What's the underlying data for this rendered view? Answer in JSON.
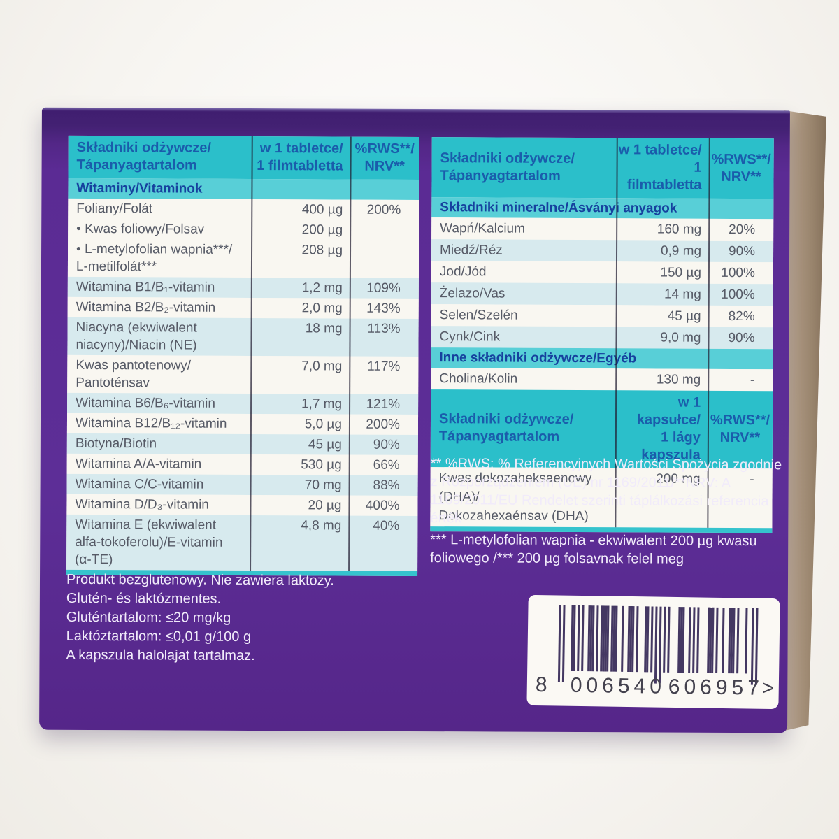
{
  "colors": {
    "box_purple": "#5b2b94",
    "box_purple_dark": "#401e70",
    "table_header_teal": "#2bbfca",
    "section_band_teal": "#58cfd7",
    "row_shade_blue": "#d7eaee",
    "row_plain": "#f9f7f1",
    "header_text_navy": "#1a5cab",
    "section_text_navy": "#16419e",
    "row_text_gray": "#565a66",
    "cardboard_edge_tan": "#a8937b",
    "barcode_bar": "#443862"
  },
  "left_table": {
    "blocks": [
      {
        "type": "header",
        "cols": [
          [
            "Składniki odżywcze/",
            "Tápanyagtartalom"
          ],
          [
            "w 1 tabletce/",
            "1 filmtabletta"
          ],
          [
            "%RWS**/",
            "NRV**"
          ]
        ]
      },
      {
        "type": "section",
        "label": "Witaminy/Vitaminok"
      },
      {
        "type": "row",
        "name": [
          "Foliany/Folát"
        ],
        "amount": "400 µg",
        "nrv": "200%",
        "shaded": false
      },
      {
        "type": "row",
        "name": [
          "• Kwas foliowy/Folsav"
        ],
        "amount": "200 µg",
        "nrv": "",
        "shaded": false
      },
      {
        "type": "row",
        "name": [
          "• L-metylofolian wapnia***/",
          "L-metilfolát***"
        ],
        "amount": "208 µg",
        "nrv": "",
        "shaded": false
      },
      {
        "type": "row",
        "name": [
          "Witamina B1/B₁-vitamin"
        ],
        "amount": "1,2 mg",
        "nrv": "109%",
        "shaded": true
      },
      {
        "type": "row",
        "name": [
          "Witamina B2/B₂-vitamin"
        ],
        "amount": "2,0 mg",
        "nrv": "143%",
        "shaded": false
      },
      {
        "type": "row",
        "name": [
          "Niacyna (ekwiwalent",
          "niacyny)/Niacin (NE)"
        ],
        "amount": "18 mg",
        "nrv": "113%",
        "shaded": true
      },
      {
        "type": "row",
        "name": [
          "Kwas pantotenowy/",
          "Pantoténsav"
        ],
        "amount": "7,0 mg",
        "nrv": "117%",
        "shaded": false
      },
      {
        "type": "row",
        "name": [
          "Witamina B6/B₆-vitamin"
        ],
        "amount": "1,7 mg",
        "nrv": "121%",
        "shaded": true
      },
      {
        "type": "row",
        "name": [
          "Witamina B12/B₁₂-vitamin"
        ],
        "amount": "5,0 µg",
        "nrv": "200%",
        "shaded": false
      },
      {
        "type": "row",
        "name": [
          "Biotyna/Biotin"
        ],
        "amount": "45 µg",
        "nrv": "90%",
        "shaded": true
      },
      {
        "type": "row",
        "name": [
          "Witamina A/A-vitamin"
        ],
        "amount": "530 µg",
        "nrv": "66%",
        "shaded": false
      },
      {
        "type": "row",
        "name": [
          "Witamina C/C-vitamin"
        ],
        "amount": "70 mg",
        "nrv": "88%",
        "shaded": true
      },
      {
        "type": "row",
        "name": [
          "Witamina D/D₃-vitamin"
        ],
        "amount": "20 µg",
        "nrv": "400%",
        "shaded": false
      },
      {
        "type": "row",
        "name": [
          "Witamina E (ekwiwalent",
          "alfa-tokoferolu)/E-vitamin",
          "(α-TE)"
        ],
        "amount": "4,8 mg",
        "nrv": "40%",
        "shaded": true
      }
    ]
  },
  "right_table": {
    "blocks": [
      {
        "type": "header",
        "cols": [
          [
            "Składniki odżywcze/",
            "Tápanyagtartalom"
          ],
          [
            "w 1 tabletce/",
            "1 filmtabletta"
          ],
          [
            "%RWS**/",
            "NRV**"
          ]
        ]
      },
      {
        "type": "section",
        "label": "Składniki mineralne/Ásványi anyagok"
      },
      {
        "type": "row",
        "name": [
          "Wapń/Kalcium"
        ],
        "amount": "160 mg",
        "nrv": "20%",
        "shaded": false
      },
      {
        "type": "row",
        "name": [
          "Miedź/Réz"
        ],
        "amount": "0,9 mg",
        "nrv": "90%",
        "shaded": true
      },
      {
        "type": "row",
        "name": [
          "Jod/Jód"
        ],
        "amount": "150 µg",
        "nrv": "100%",
        "shaded": false
      },
      {
        "type": "row",
        "name": [
          "Żelazo/Vas"
        ],
        "amount": "14 mg",
        "nrv": "100%",
        "shaded": true
      },
      {
        "type": "row",
        "name": [
          "Selen/Szelén"
        ],
        "amount": "45 µg",
        "nrv": "82%",
        "shaded": false
      },
      {
        "type": "row",
        "name": [
          "Cynk/Cink"
        ],
        "amount": "9,0 mg",
        "nrv": "90%",
        "shaded": true
      },
      {
        "type": "section",
        "label": "Inne składniki odżywcze/Egyéb"
      },
      {
        "type": "row",
        "name": [
          "Cholina/Kolin"
        ],
        "amount": "130 mg",
        "nrv": "-",
        "shaded": false
      },
      {
        "type": "header",
        "cols": [
          [
            "Składniki odżywcze/",
            "Tápanyagtartalom"
          ],
          [
            "w 1 kapsułce/",
            "1 lágy kapszula"
          ],
          [
            "%RWS**/",
            "NRV**"
          ]
        ]
      },
      {
        "type": "row",
        "name": [
          "Kwas dokozaheksaenowy (DHA)/",
          "Dokozahexaénsav (DHA)"
        ],
        "amount": "200 mg",
        "nrv": "-",
        "shaded": false
      }
    ]
  },
  "footnotes_right": [
    "** %RWS:  % Referencyjnych Wartości Spożycia zgodnie z Rozporządzeniem (UE) nr 1169/2011/**NRV: A 1169/2011/EU Rendelet szerinti táplálkozási referencia érték",
    "*** L-metylofolian wapnia - ekwiwalent 200 µg kwasu foliowego /*** 200 µg folsavnak felel meg"
  ],
  "footnotes_left": [
    "Produkt bezglutenowy. Nie zawiera laktozy.",
    "Glutén- és laktózmentes.",
    "Gluténtartalom: ≤20 mg/kg",
    "Laktóztartalom: ≤0,01 g/100 g",
    "A kapszula halolajat tartalmaz."
  ],
  "barcode": {
    "value": "8006540606957",
    "first_digit": "8",
    "group1": "006540",
    "group2": "606957",
    "end_char": ">"
  }
}
